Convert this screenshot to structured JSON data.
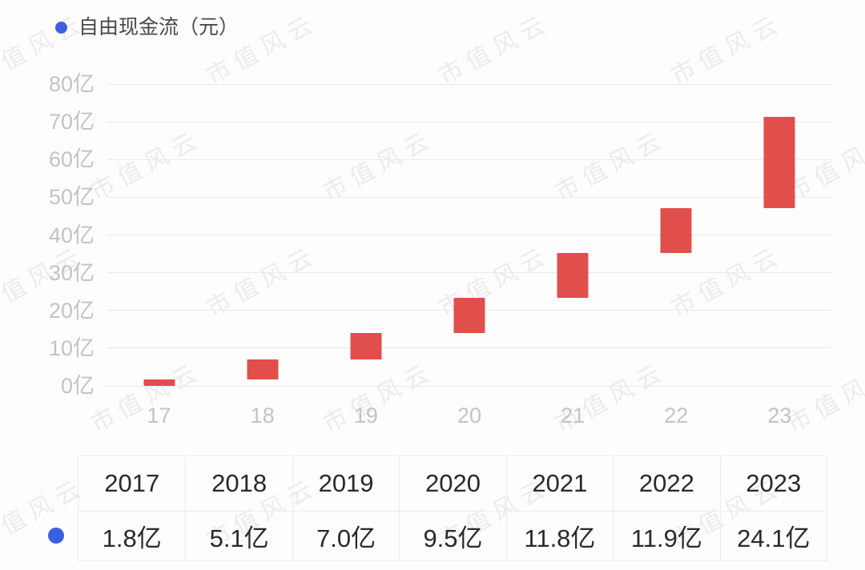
{
  "legend": {
    "label": "自由现金流（元）"
  },
  "watermark": {
    "text": "市值风云"
  },
  "colors": {
    "bar": "#e04f4c",
    "series_dot": "#3c5fe2",
    "axis_label": "#c3c3c7",
    "gridline": "#eaeaec",
    "table_border": "#ececee",
    "table_text": "#28292d",
    "background": "#fdfdfd"
  },
  "chart_data": {
    "type": "bar",
    "subtype": "floating-waterfall",
    "title": "自由现金流（元）",
    "x": [
      "17",
      "18",
      "19",
      "20",
      "21",
      "22",
      "23"
    ],
    "values_yi": [
      1.8,
      5.1,
      7.0,
      9.5,
      11.8,
      11.9,
      24.1
    ],
    "cumulative_ranges_yi": [
      [
        0,
        1.8
      ],
      [
        1.8,
        6.9
      ],
      [
        6.9,
        13.9
      ],
      [
        13.9,
        23.4
      ],
      [
        23.4,
        35.2
      ],
      [
        35.2,
        47.1
      ],
      [
        47.1,
        71.2
      ]
    ],
    "y_ticks": [
      "0亿",
      "10亿",
      "20亿",
      "30亿",
      "40亿",
      "50亿",
      "60亿",
      "70亿",
      "80亿"
    ],
    "ylim": [
      0,
      80
    ],
    "unit": "亿",
    "grid": true,
    "legend_position": "top-left"
  },
  "table": {
    "years": [
      "2017",
      "2018",
      "2019",
      "2020",
      "2021",
      "2022",
      "2023"
    ],
    "values": [
      "1.8亿",
      "5.1亿",
      "7.0亿",
      "9.5亿",
      "11.8亿",
      "11.9亿",
      "24.1亿"
    ]
  }
}
